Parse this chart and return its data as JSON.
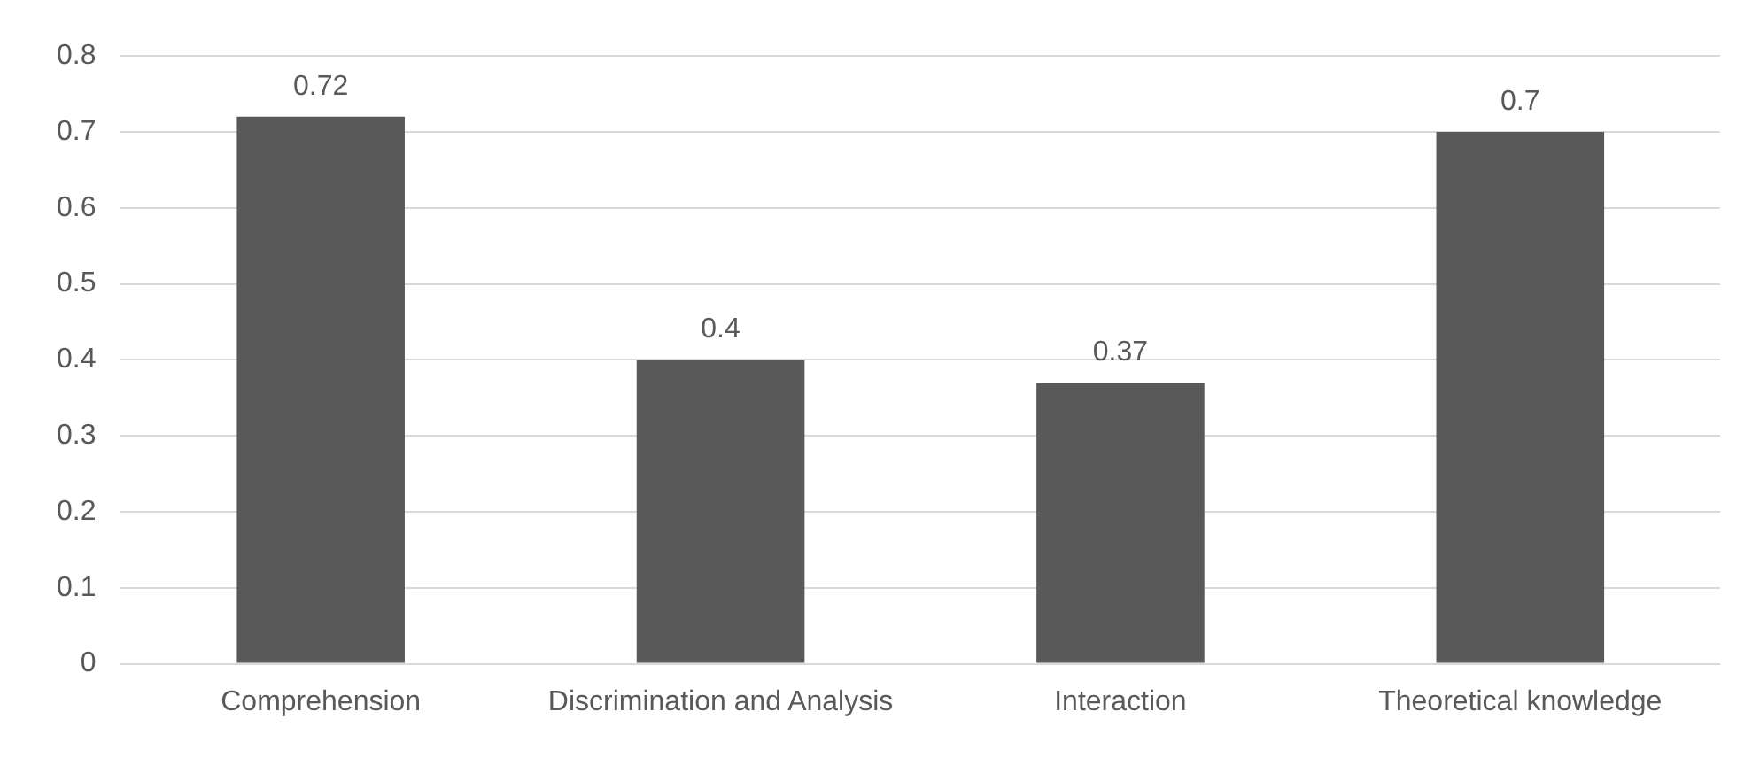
{
  "chart_data": {
    "type": "bar",
    "categories": [
      "Comprehension",
      "Discrimination and Analysis",
      "Interaction",
      "Theoretical knowledge"
    ],
    "values": [
      0.72,
      0.4,
      0.37,
      0.7
    ],
    "color": "#595959",
    "ylim": [
      0,
      0.8
    ],
    "yticks": [
      0,
      0.1,
      0.2,
      0.3,
      0.4,
      0.5,
      0.6,
      0.7,
      0.8
    ],
    "grid": "y",
    "data_labels": true,
    "legend": false
  }
}
